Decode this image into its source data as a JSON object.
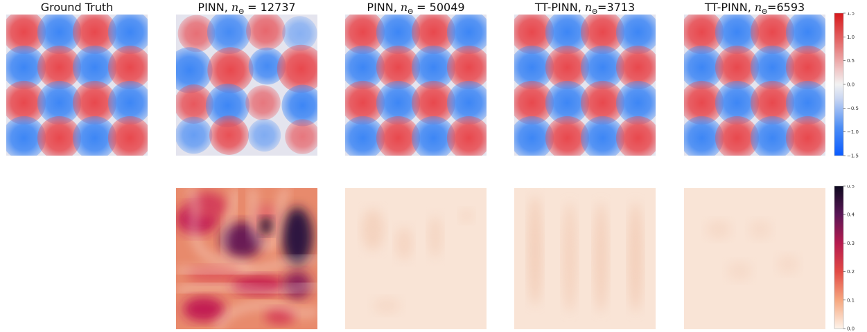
{
  "titles": {
    "ground_truth": "Ground Truth",
    "pinn_small": {
      "prefix": "PINN, ",
      "n": "n",
      "sub": "Θ",
      "suffix": " = 12737"
    },
    "pinn_large": {
      "prefix": "PINN, ",
      "n": "n",
      "sub": "Θ",
      "suffix": " = 50049"
    },
    "ttpinn_small": {
      "prefix": "TT-PINN, ",
      "n": "n",
      "sub": "Θ",
      "suffix": "=3713"
    },
    "ttpinn_large": {
      "prefix": "TT-PINN, ",
      "n": "n",
      "sub": "Θ",
      "suffix": "=6593"
    }
  },
  "chart_data": [
    {
      "type": "heatmap",
      "panel": "solution fields (top row)",
      "columns": [
        "Ground Truth",
        "PINN, nΘ = 12737",
        "PINN, nΘ = 50049",
        "TT-PINN, nΘ=3713",
        "TT-PINN, nΘ=6593"
      ],
      "grid": [
        4,
        4
      ],
      "sign_pattern": [
        [
          1,
          -1,
          1,
          -1
        ],
        [
          -1,
          1,
          -1,
          1
        ],
        [
          1,
          -1,
          1,
          -1
        ],
        [
          -1,
          1,
          -1,
          1
        ]
      ],
      "colormap": "diverging blue-white-red",
      "colorbar": {
        "min": -1.5,
        "max": 1.5,
        "ticks": [
          "1.5",
          "1.0",
          "0.5",
          "0.0",
          "−0.5",
          "−1.0",
          "−1.5"
        ]
      }
    },
    {
      "type": "heatmap",
      "panel": "absolute error (bottom row)",
      "columns": [
        "PINN, nΘ = 12737",
        "PINN, nΘ = 50049",
        "TT-PINN, nΘ=3713",
        "TT-PINN, nΘ=6593"
      ],
      "colormap": "rocket_r (white-orange-red-purple-black)",
      "colorbar": {
        "min": 0.0,
        "max": 0.5,
        "ticks": [
          "0.5",
          "0.4",
          "0.3",
          "0.2",
          "0.1",
          "0.0"
        ]
      }
    }
  ],
  "colors": {
    "positive": "#e8484d",
    "negative": "#3d86f5",
    "neutral": "#e4e4ee",
    "error_low": "#f9e4d6",
    "error_mid": "#d3284e",
    "error_high": "#1e1230"
  }
}
